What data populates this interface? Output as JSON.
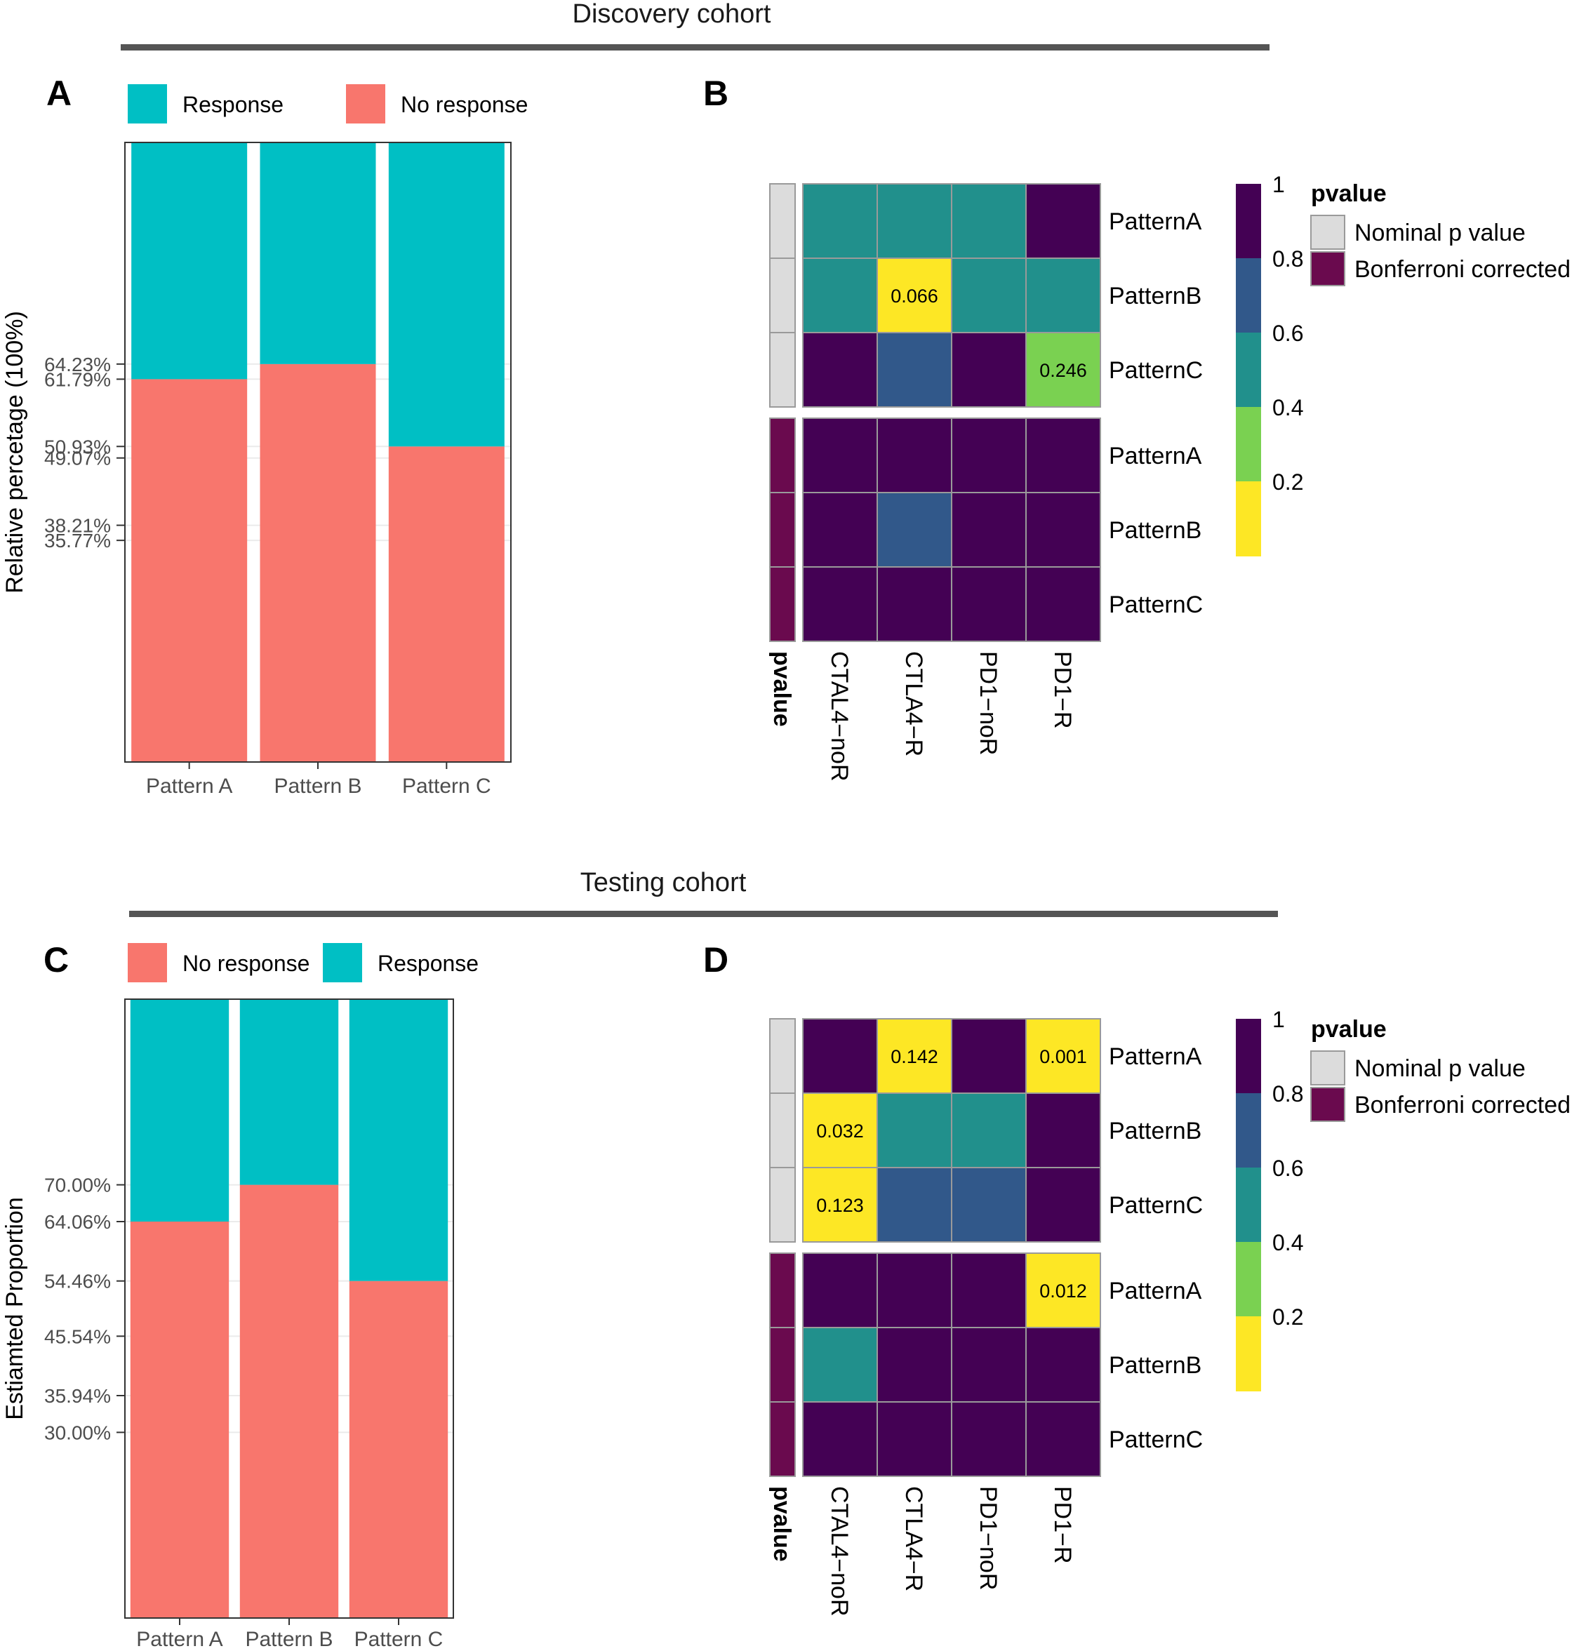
{
  "sections": [
    {
      "title": "Discovery cohort"
    },
    {
      "title": "Testing cohort"
    }
  ],
  "colors": {
    "response": "#00BFC4",
    "no_response": "#F8766D",
    "nominal": "#DCDCDC",
    "bonferroni": "#6A0A4E",
    "viridis": [
      "#440154",
      "#31588A",
      "#21908C",
      "#7AD151",
      "#FDE725"
    ]
  },
  "chart_data": [
    {
      "panel": "A",
      "type": "bar",
      "stacked": true,
      "categories": [
        "Pattern A",
        "Pattern B",
        "Pattern C"
      ],
      "series": [
        {
          "name": "No response",
          "key": "no_response",
          "values": [
            61.79,
            64.23,
            50.93
          ]
        },
        {
          "name": "Response",
          "key": "response",
          "values": [
            38.21,
            35.77,
            49.07
          ]
        }
      ],
      "legend": [
        {
          "label": "Response",
          "key": "response"
        },
        {
          "label": "No response",
          "key": "no_response"
        }
      ],
      "yticks": [
        "35.77%",
        "38.21%",
        "49.07%",
        "50.93%",
        "61.79%",
        "64.23%"
      ],
      "ylabel": "Relative percetage (100%)",
      "xlabel": ""
    },
    {
      "panel": "B",
      "type": "heatmap",
      "columns": [
        "CTAL4−noR",
        "CTLA4−R",
        "PD1−noR",
        "PD1−R"
      ],
      "rows": [
        "PatternA",
        "PatternB",
        "PatternC",
        "PatternA",
        "PatternB",
        "PatternC"
      ],
      "row_groups": [
        "nominal",
        "nominal",
        "nominal",
        "bonferroni",
        "bonferroni",
        "bonferroni"
      ],
      "annotation_label": "pvalue",
      "values": [
        [
          0.4,
          0.4,
          0.4,
          1.0
        ],
        [
          0.4,
          0.066,
          0.5,
          0.4
        ],
        [
          1.0,
          0.7,
          1.0,
          0.246
        ],
        [
          1.0,
          1.0,
          1.0,
          1.0
        ],
        [
          1.0,
          0.7,
          1.0,
          1.0
        ],
        [
          1.0,
          1.0,
          1.0,
          1.0
        ]
      ],
      "cell_labels": [
        [
          "",
          "",
          "",
          ""
        ],
        [
          "",
          "0.066",
          "",
          ""
        ],
        [
          "",
          "",
          "",
          "0.246"
        ],
        [
          "",
          "",
          "",
          ""
        ],
        [
          "",
          "",
          "",
          ""
        ],
        [
          "",
          "",
          "",
          ""
        ]
      ],
      "colorbar": {
        "ticks": [
          "1",
          "0.8",
          "0.6",
          "0.4",
          "0.2"
        ]
      },
      "legend": {
        "title": "pvalue",
        "items": [
          {
            "label": "Nominal p value",
            "key": "nominal"
          },
          {
            "label": "Bonferroni corrected",
            "key": "bonferroni"
          }
        ]
      }
    },
    {
      "panel": "C",
      "type": "bar",
      "stacked": true,
      "categories": [
        "Pattern A",
        "Pattern B",
        "Pattern C"
      ],
      "series": [
        {
          "name": "No response",
          "key": "no_response",
          "values": [
            64.06,
            70.0,
            54.46
          ]
        },
        {
          "name": "Response",
          "key": "response",
          "values": [
            35.94,
            30.0,
            45.54
          ]
        }
      ],
      "legend": [
        {
          "label": "No response",
          "key": "no_response"
        },
        {
          "label": "Response",
          "key": "response"
        }
      ],
      "yticks": [
        "30.00%",
        "35.94%",
        "45.54%",
        "54.46%",
        "64.06%",
        "70.00%"
      ],
      "ylabel": "Estiamted Proportion",
      "xlabel": ""
    },
    {
      "panel": "D",
      "type": "heatmap",
      "columns": [
        "CTAL4−noR",
        "CTLA4−R",
        "PD1−noR",
        "PD1−R"
      ],
      "rows": [
        "PatternA",
        "PatternB",
        "PatternC",
        "PatternA",
        "PatternB",
        "PatternC"
      ],
      "row_groups": [
        "nominal",
        "nominal",
        "nominal",
        "bonferroni",
        "bonferroni",
        "bonferroni"
      ],
      "annotation_label": "pvalue",
      "values": [
        [
          1.0,
          0.142,
          1.0,
          0.001
        ],
        [
          0.032,
          0.5,
          0.4,
          1.0
        ],
        [
          0.123,
          0.7,
          0.7,
          1.0
        ],
        [
          1.0,
          1.0,
          1.0,
          0.012
        ],
        [
          0.4,
          1.0,
          1.0,
          1.0
        ],
        [
          1.0,
          1.0,
          1.0,
          1.0
        ]
      ],
      "cell_labels": [
        [
          "",
          "0.142",
          "",
          "0.001"
        ],
        [
          "0.032",
          "",
          "",
          ""
        ],
        [
          "0.123",
          "",
          "",
          ""
        ],
        [
          "",
          "",
          "",
          "0.012"
        ],
        [
          "",
          "",
          "",
          ""
        ],
        [
          "",
          "",
          "",
          ""
        ]
      ],
      "colorbar": {
        "ticks": [
          "1",
          "0.8",
          "0.6",
          "0.4",
          "0.2"
        ]
      },
      "legend": {
        "title": "pvalue",
        "items": [
          {
            "label": "Nominal p value",
            "key": "nominal"
          },
          {
            "label": "Bonferroni corrected",
            "key": "bonferroni"
          }
        ]
      }
    }
  ]
}
